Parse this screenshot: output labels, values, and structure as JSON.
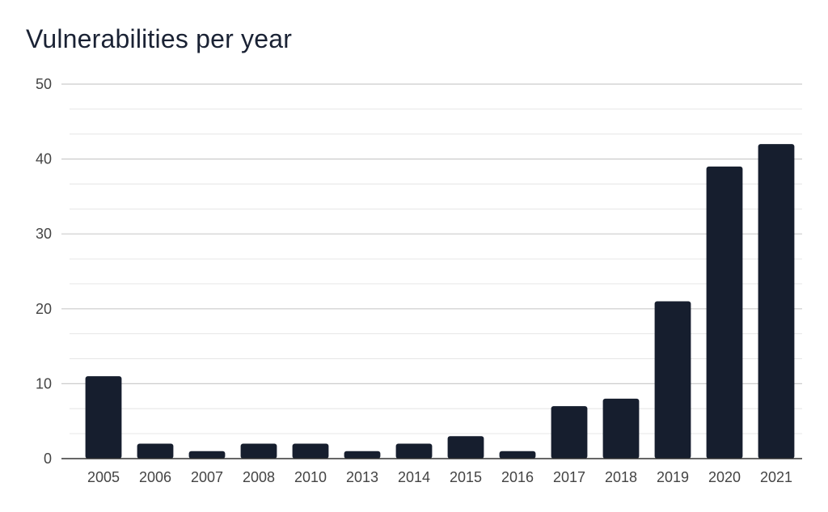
{
  "chart_data": {
    "type": "bar",
    "title": "Vulnerabilities per year",
    "xlabel": "",
    "ylabel": "",
    "categories": [
      "2005",
      "2006",
      "2007",
      "2008",
      "2010",
      "2013",
      "2014",
      "2015",
      "2016",
      "2017",
      "2018",
      "2019",
      "2020",
      "2021"
    ],
    "values": [
      11,
      2,
      1,
      2,
      2,
      1,
      2,
      3,
      1,
      7,
      8,
      21,
      39,
      42
    ],
    "ylim": [
      0,
      50
    ],
    "yticks": [
      0,
      10,
      20,
      30,
      40,
      50
    ],
    "grid": true,
    "legend": "none",
    "bar_color": "#161e2e",
    "grid_color": "#cccccc",
    "minor_grid_color": "#e6e6e6",
    "axis_color": "#333333"
  }
}
